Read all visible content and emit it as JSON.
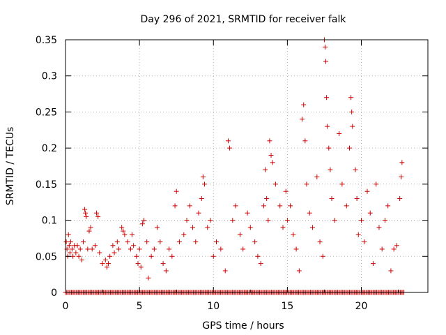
{
  "chart_data": {
    "type": "scatter",
    "title": "Day 296 of 2021, SRMTID for receiver falk",
    "xlabel": "GPS time / hours",
    "ylabel": "SRMTID / TECUs",
    "xlim": [
      0,
      24.5
    ],
    "ylim": [
      0,
      0.35
    ],
    "grid": true,
    "marker": "+",
    "color": "#cc0000",
    "xticks": [
      0,
      5,
      10,
      15,
      20
    ],
    "xtick_labels": [
      "0",
      "5",
      "10",
      "15",
      "20"
    ],
    "yticks": [
      0,
      0.05,
      0.1,
      0.15,
      0.2,
      0.25,
      0.3,
      0.35
    ],
    "ytick_labels": [
      "0",
      "0.05",
      "0.1",
      "0.15",
      "0.2",
      "0.25",
      "0.3",
      "0.35"
    ],
    "series": [
      {
        "name": "SRMTID",
        "points": [
          [
            0.05,
            0.07
          ],
          [
            0.1,
            0.06
          ],
          [
            0.15,
            0.05
          ],
          [
            0.2,
            0.08
          ],
          [
            0.25,
            0.065
          ],
          [
            0.3,
            0.055
          ],
          [
            0.35,
            0.07
          ],
          [
            0.45,
            0.06
          ],
          [
            0.5,
            0.05
          ],
          [
            0.6,
            0.065
          ],
          [
            0.7,
            0.055
          ],
          [
            0.8,
            0.065
          ],
          [
            0.9,
            0.05
          ],
          [
            1.0,
            0.06
          ],
          [
            1.1,
            0.045
          ],
          [
            1.2,
            0.07
          ],
          [
            1.3,
            0.115
          ],
          [
            1.35,
            0.11
          ],
          [
            1.4,
            0.105
          ],
          [
            1.5,
            0.06
          ],
          [
            1.6,
            0.085
          ],
          [
            1.7,
            0.09
          ],
          [
            1.8,
            0.06
          ],
          [
            2.0,
            0.065
          ],
          [
            2.1,
            0.11
          ],
          [
            2.2,
            0.105
          ],
          [
            2.3,
            0.055
          ],
          [
            2.5,
            0.04
          ],
          [
            2.7,
            0.045
          ],
          [
            2.8,
            0.035
          ],
          [
            2.9,
            0.04
          ],
          [
            3.0,
            0.05
          ],
          [
            3.2,
            0.065
          ],
          [
            3.3,
            0.055
          ],
          [
            3.5,
            0.07
          ],
          [
            3.6,
            0.06
          ],
          [
            3.8,
            0.09
          ],
          [
            3.9,
            0.085
          ],
          [
            4.0,
            0.08
          ],
          [
            4.2,
            0.07
          ],
          [
            4.4,
            0.06
          ],
          [
            4.5,
            0.08
          ],
          [
            4.6,
            0.065
          ],
          [
            4.8,
            0.05
          ],
          [
            4.9,
            0.04
          ],
          [
            5.0,
            0.06
          ],
          [
            5.1,
            0.035
          ],
          [
            5.2,
            0.095
          ],
          [
            5.3,
            0.1
          ],
          [
            5.5,
            0.07
          ],
          [
            5.6,
            0.02
          ],
          [
            5.8,
            0.05
          ],
          [
            6.0,
            0.06
          ],
          [
            6.2,
            0.09
          ],
          [
            6.4,
            0.07
          ],
          [
            6.6,
            0.04
          ],
          [
            6.8,
            0.03
          ],
          [
            7.0,
            0.06
          ],
          [
            7.2,
            0.05
          ],
          [
            7.4,
            0.12
          ],
          [
            7.5,
            0.14
          ],
          [
            7.7,
            0.07
          ],
          [
            8.0,
            0.08
          ],
          [
            8.2,
            0.1
          ],
          [
            8.4,
            0.12
          ],
          [
            8.6,
            0.09
          ],
          [
            8.8,
            0.07
          ],
          [
            9.0,
            0.11
          ],
          [
            9.2,
            0.13
          ],
          [
            9.3,
            0.16
          ],
          [
            9.4,
            0.15
          ],
          [
            9.6,
            0.09
          ],
          [
            9.8,
            0.1
          ],
          [
            10.0,
            0.05
          ],
          [
            10.2,
            0.07
          ],
          [
            10.5,
            0.06
          ],
          [
            10.8,
            0.03
          ],
          [
            11.0,
            0.21
          ],
          [
            11.1,
            0.2
          ],
          [
            11.3,
            0.1
          ],
          [
            11.5,
            0.12
          ],
          [
            11.8,
            0.08
          ],
          [
            12.0,
            0.06
          ],
          [
            12.3,
            0.11
          ],
          [
            12.5,
            0.09
          ],
          [
            12.8,
            0.07
          ],
          [
            13.0,
            0.05
          ],
          [
            13.2,
            0.04
          ],
          [
            13.4,
            0.12
          ],
          [
            13.5,
            0.17
          ],
          [
            13.6,
            0.13
          ],
          [
            13.7,
            0.1
          ],
          [
            13.8,
            0.21
          ],
          [
            13.9,
            0.19
          ],
          [
            14.0,
            0.18
          ],
          [
            14.2,
            0.15
          ],
          [
            14.5,
            0.12
          ],
          [
            14.7,
            0.09
          ],
          [
            14.9,
            0.14
          ],
          [
            15.0,
            0.1
          ],
          [
            15.2,
            0.12
          ],
          [
            15.4,
            0.08
          ],
          [
            15.6,
            0.06
          ],
          [
            15.8,
            0.03
          ],
          [
            16.0,
            0.24
          ],
          [
            16.1,
            0.26
          ],
          [
            16.2,
            0.21
          ],
          [
            16.3,
            0.15
          ],
          [
            16.5,
            0.11
          ],
          [
            16.7,
            0.09
          ],
          [
            17.0,
            0.16
          ],
          [
            17.2,
            0.07
          ],
          [
            17.4,
            0.05
          ],
          [
            17.5,
            0.35
          ],
          [
            17.55,
            0.34
          ],
          [
            17.6,
            0.32
          ],
          [
            17.65,
            0.27
          ],
          [
            17.7,
            0.23
          ],
          [
            17.8,
            0.2
          ],
          [
            17.9,
            0.17
          ],
          [
            18.0,
            0.13
          ],
          [
            18.2,
            0.1
          ],
          [
            18.5,
            0.22
          ],
          [
            18.7,
            0.15
          ],
          [
            19.0,
            0.12
          ],
          [
            19.2,
            0.2
          ],
          [
            19.3,
            0.27
          ],
          [
            19.35,
            0.25
          ],
          [
            19.4,
            0.23
          ],
          [
            19.6,
            0.17
          ],
          [
            19.7,
            0.13
          ],
          [
            19.8,
            0.08
          ],
          [
            20.0,
            0.1
          ],
          [
            20.2,
            0.07
          ],
          [
            20.4,
            0.14
          ],
          [
            20.6,
            0.11
          ],
          [
            20.8,
            0.04
          ],
          [
            21.0,
            0.15
          ],
          [
            21.2,
            0.09
          ],
          [
            21.4,
            0.06
          ],
          [
            21.6,
            0.1
          ],
          [
            21.8,
            0.12
          ],
          [
            22.0,
            0.03
          ],
          [
            22.2,
            0.06
          ],
          [
            22.4,
            0.065
          ],
          [
            22.6,
            0.13
          ],
          [
            22.7,
            0.16
          ],
          [
            22.75,
            0.18
          ]
        ]
      }
    ],
    "zero_band": {
      "x_start": 0.0,
      "x_end": 22.9,
      "step": 0.08,
      "y": 0
    }
  }
}
